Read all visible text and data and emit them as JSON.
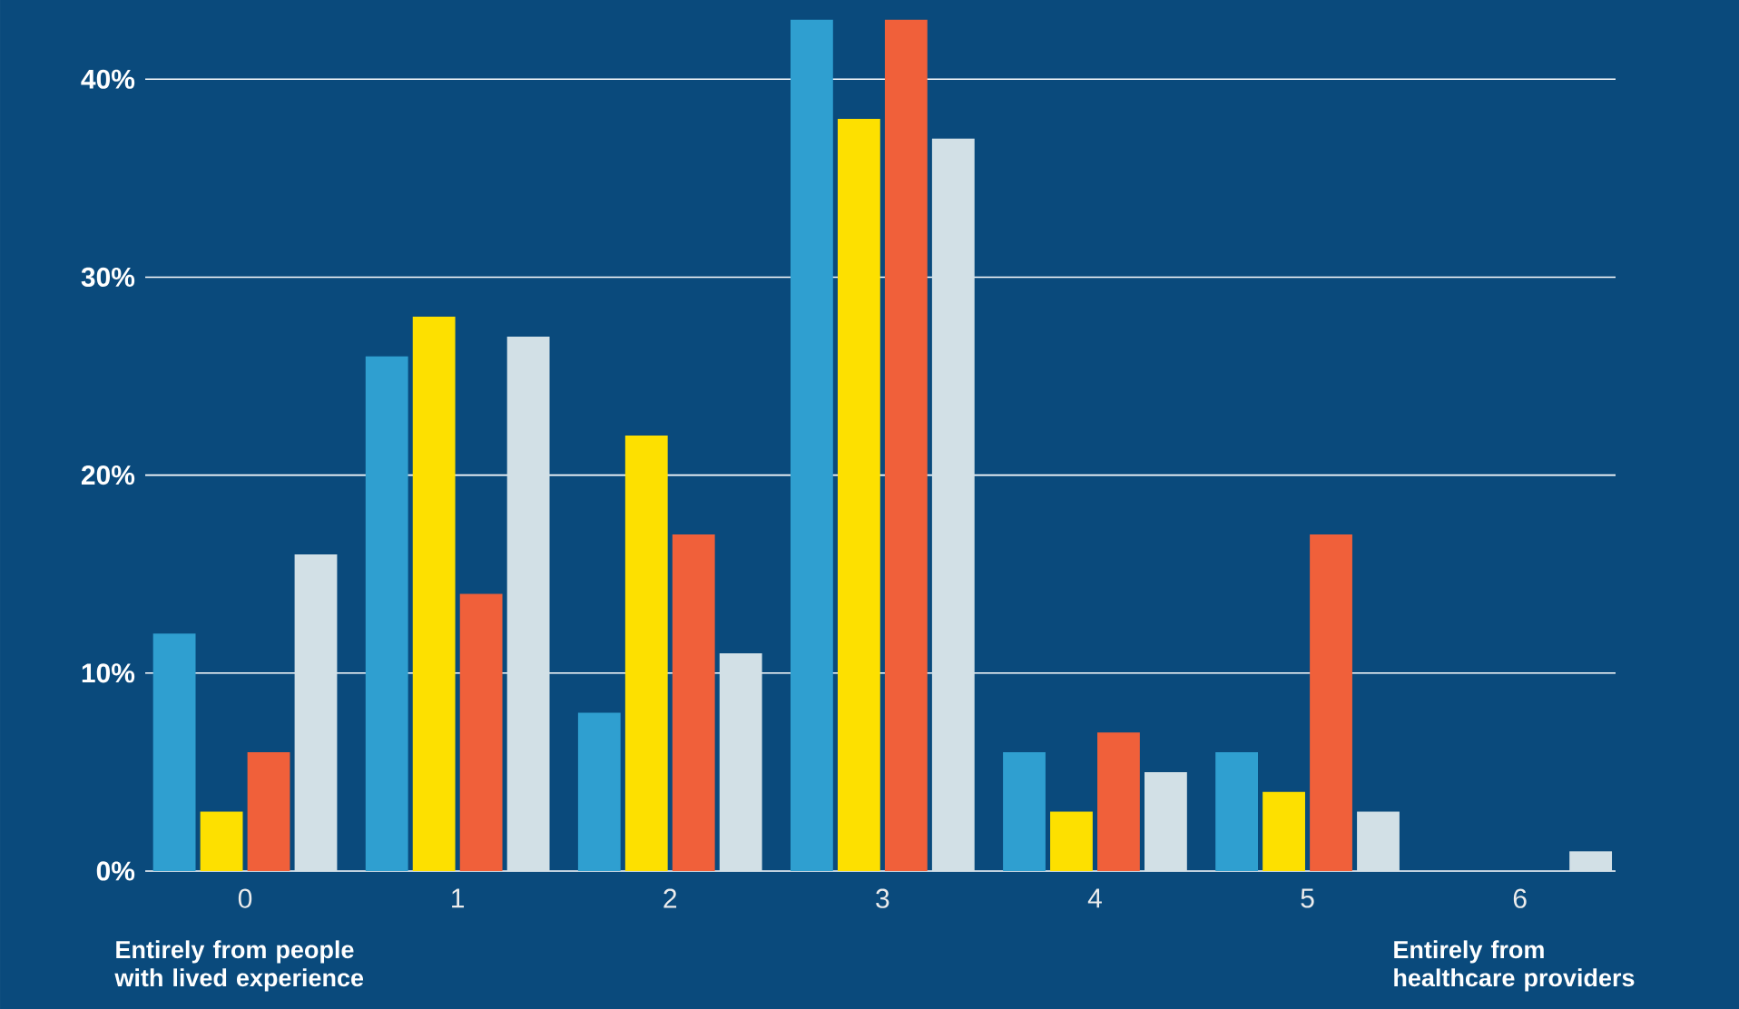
{
  "chart_data": {
    "type": "bar",
    "categories": [
      "0",
      "1",
      "2",
      "3",
      "4",
      "5",
      "6"
    ],
    "series": [
      {
        "color": "#2f9fd0",
        "values": [
          12,
          26,
          8,
          43,
          6,
          6,
          0
        ]
      },
      {
        "color": "#fde000",
        "values": [
          3,
          28,
          22,
          38,
          3,
          4,
          0
        ]
      },
      {
        "color": "#f0603a",
        "values": [
          6,
          14,
          17,
          43,
          7,
          17,
          0
        ]
      },
      {
        "color": "#d2e0e6",
        "values": [
          16,
          27,
          11,
          37,
          5,
          3,
          1
        ]
      }
    ],
    "ylim": [
      0,
      44
    ],
    "yticks": [
      {
        "value": 0,
        "label": "0%"
      },
      {
        "value": 10,
        "label": "10%"
      },
      {
        "value": 20,
        "label": "20%"
      },
      {
        "value": 30,
        "label": "30%"
      },
      {
        "value": 40,
        "label": "40%"
      }
    ],
    "grid": "y",
    "annotations": [
      "Entirely from people with lived experience",
      "Entirely from healthcare providers"
    ]
  }
}
